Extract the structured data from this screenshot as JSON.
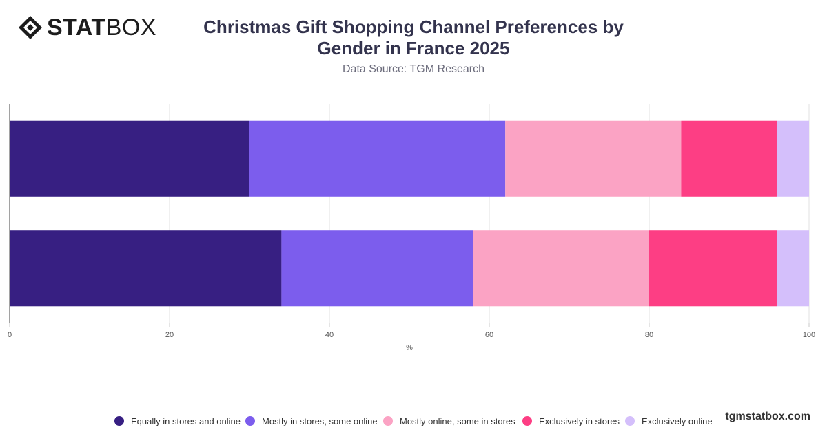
{
  "brand": {
    "logo_bold": "STAT",
    "logo_light": "BOX",
    "watermark": "tgmstatbox.com"
  },
  "header": {
    "title_line1": "Christmas Gift Shopping Channel Preferences by",
    "title_line2": "Gender in France 2025",
    "subtitle": "Data Source: TGM Research"
  },
  "chart_data": {
    "type": "bar",
    "orientation": "horizontal",
    "stacked": true,
    "title": "Christmas Gift Shopping Channel Preferences by Gender in France 2025",
    "subtitle": "Data Source: TGM Research",
    "xlabel": "%",
    "ylabel": "",
    "xlim": [
      0,
      100
    ],
    "xticks": [
      0,
      20,
      40,
      60,
      80,
      100
    ],
    "categories": [
      "",
      ""
    ],
    "grid": true,
    "legend_position": "bottom",
    "series": [
      {
        "name": "Equally in stores and online",
        "color": "#371f82",
        "values": [
          30,
          34
        ]
      },
      {
        "name": "Mostly in stores, some online",
        "color": "#7c5ded",
        "values": [
          32,
          24
        ]
      },
      {
        "name": "Mostly online, some in stores",
        "color": "#fba3c4",
        "values": [
          22,
          22
        ]
      },
      {
        "name": "Exclusively in stores",
        "color": "#fd3e84",
        "values": [
          12,
          16
        ]
      },
      {
        "name": "Exclusively online",
        "color": "#d4bffb",
        "values": [
          4,
          4
        ]
      }
    ]
  }
}
